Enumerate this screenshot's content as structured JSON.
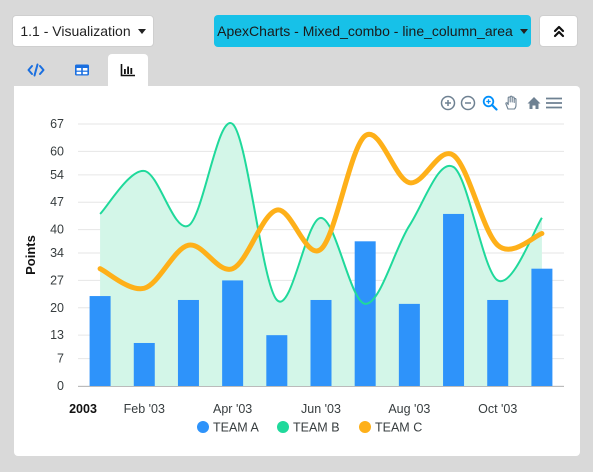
{
  "toolbar": {
    "viz_label": "1.1 - Visualization",
    "combo_label": "ApexCharts - Mixed_combo - line_column_area",
    "collapse_symbol": "⌃⌃"
  },
  "tabs": [
    {
      "name": "code",
      "icon": "code-icon"
    },
    {
      "name": "table",
      "icon": "table-icon"
    },
    {
      "name": "chart",
      "icon": "bar-chart-icon",
      "active": true
    }
  ],
  "chart_toolbar": [
    "zoom-in-icon",
    "zoom-out-icon",
    "zoom-selection-icon",
    "pan-icon",
    "reset-home-icon",
    "menu-icon"
  ],
  "colors": {
    "team_a": "#2e93fa",
    "team_b": "#1fd99b",
    "team_b_fill": "#d3f6e8",
    "team_c": "#feb019",
    "grid": "#e6e6e6",
    "axis_text": "#373d3f"
  },
  "chart_data": {
    "type": "mixed",
    "ylabel": "Points",
    "ylim": [
      0,
      67
    ],
    "yticks": [
      "0",
      "7",
      "13",
      "20",
      "27",
      "34",
      "40",
      "47",
      "54",
      "60",
      "67"
    ],
    "x": [
      "2003-01-01",
      "2003-02-01",
      "2003-03-01",
      "2003-04-01",
      "2003-05-01",
      "2003-06-01",
      "2003-07-01",
      "2003-08-01",
      "2003-09-01",
      "2003-10-01",
      "2003-11-01"
    ],
    "xtick_labels": [
      {
        "date": "2003-01-01",
        "text": "2003",
        "bold": true
      },
      {
        "date": "2003-02-01",
        "text": "Feb '03"
      },
      {
        "date": "2003-04-01",
        "text": "Apr '03"
      },
      {
        "date": "2003-06-01",
        "text": "Jun '03"
      },
      {
        "date": "2003-08-01",
        "text": "Aug '03"
      },
      {
        "date": "2003-10-01",
        "text": "Oct '03"
      }
    ],
    "series": [
      {
        "name": "TEAM A",
        "type": "column",
        "values": [
          23,
          11,
          22,
          27,
          13,
          22,
          37,
          21,
          44,
          22,
          30
        ]
      },
      {
        "name": "TEAM B",
        "type": "area",
        "values": [
          44,
          55,
          41,
          67,
          22,
          43,
          21,
          41,
          56,
          27,
          43
        ]
      },
      {
        "name": "TEAM C",
        "type": "line",
        "values": [
          30,
          25,
          36,
          30,
          45,
          35,
          64,
          52,
          59,
          36,
          39
        ]
      }
    ],
    "legend_position": "bottom"
  }
}
